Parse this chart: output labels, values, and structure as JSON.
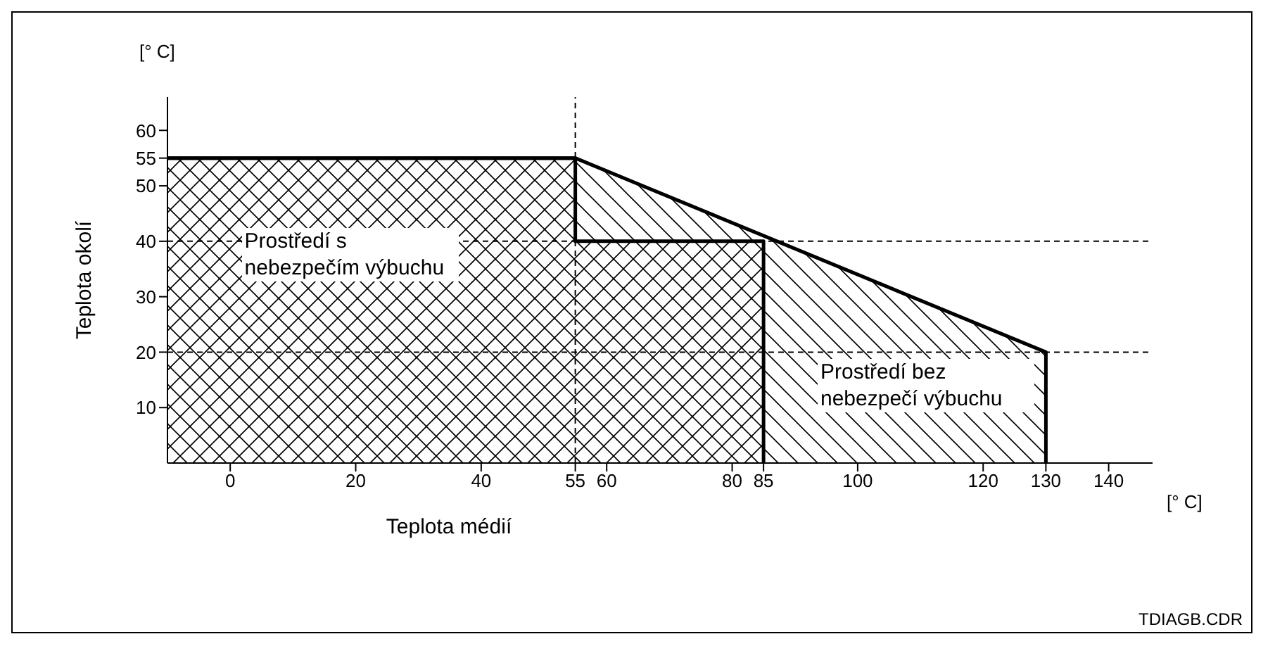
{
  "chart_data": {
    "type": "area",
    "xlabel": "Teplota médií",
    "ylabel": "Teplota okolí",
    "annotations": [
      "[° C]",
      "[° C]",
      "TDIAGB.CDR"
    ],
    "xlim": [
      -10,
      147
    ],
    "ylim": [
      0,
      66
    ],
    "xticks": [
      0,
      20,
      40,
      55,
      60,
      80,
      85,
      100,
      120,
      130,
      140
    ],
    "yticks": [
      10,
      20,
      30,
      40,
      50,
      55,
      60
    ],
    "ref_lines": [
      {
        "axis": "y",
        "value": 40,
        "color": "#000000",
        "line_style": "dashed"
      },
      {
        "axis": "y",
        "value": 20,
        "color": "#000000",
        "line_style": "dashed"
      },
      {
        "axis": "x",
        "value": 55,
        "color": "#000000",
        "line_style": "dashed"
      }
    ],
    "series": [
      {
        "name": "Prostředí bez nebezpečí výbuchu",
        "color": "#000000",
        "x": [
          -10,
          55,
          130,
          130
        ],
        "values": [
          55,
          55,
          20,
          0
        ]
      },
      {
        "name": "Prostředí s nebezpečím výbuchu",
        "color": "#000000",
        "x": [
          -10,
          55,
          55,
          85,
          85
        ],
        "values": [
          55,
          55,
          40,
          40,
          0
        ]
      }
    ]
  }
}
